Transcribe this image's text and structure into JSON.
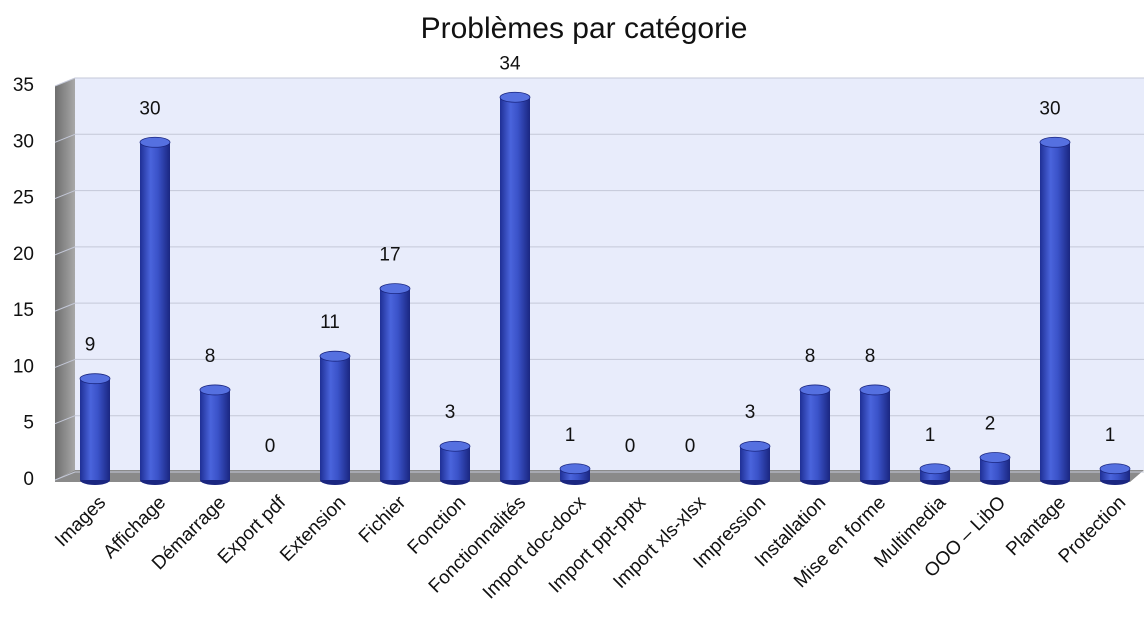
{
  "chart_data": {
    "type": "bar",
    "title": "Problèmes par catégorie",
    "categories": [
      "Images",
      "Affichage",
      "Démarrage",
      "Export pdf",
      "Extension",
      "Fichier",
      "Fonction",
      "Fonctionnalités",
      "Import doc-docx",
      "Import ppt-pptx",
      "Import xls-xlsx",
      "Impression",
      "Installation",
      "Mise en forme",
      "Multimedia",
      "OOO – LibO",
      "Plantage",
      "Protection"
    ],
    "values": [
      9,
      30,
      8,
      0,
      11,
      17,
      3,
      34,
      1,
      0,
      0,
      3,
      8,
      8,
      1,
      2,
      30,
      1
    ],
    "color": "#3a50c8",
    "ylim": [
      0,
      35
    ],
    "yticks": [
      0,
      5,
      10,
      15,
      20,
      25,
      30,
      35
    ],
    "grid": true
  }
}
